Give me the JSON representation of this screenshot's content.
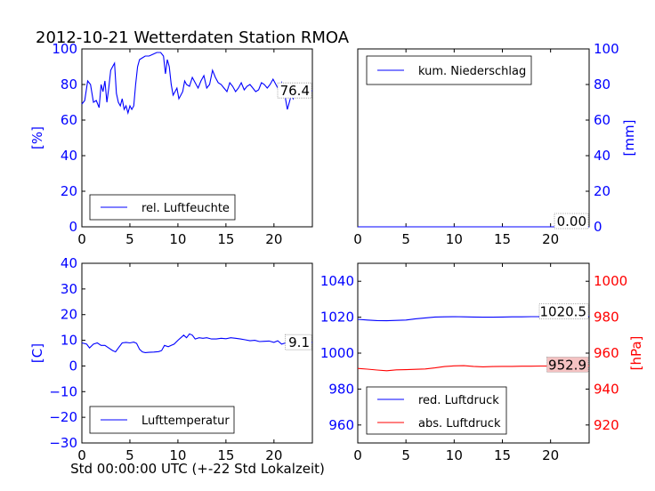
{
  "title": "2012-10-21 Wetterdaten Station RMOA",
  "xlabel": "Std 00:00:00 UTC (+-22 Std Lokalzeit)",
  "colors": {
    "blue": "#0000ff",
    "red": "#ff0000",
    "black": "#000000",
    "red_box": "#f4c2c2"
  },
  "chart_data": [
    {
      "id": "humidity",
      "type": "line",
      "ylabel": "[%]",
      "ylim": [
        0,
        100
      ],
      "yticks": [
        "0",
        "20",
        "40",
        "60",
        "80",
        "100"
      ],
      "xlim": [
        0,
        24
      ],
      "xticks": [
        "0",
        "5",
        "10",
        "15",
        "20"
      ],
      "legend": "rel. Luftfeuchte",
      "legend_position": "lower-left",
      "last_value_label": "76.4",
      "series": [
        {
          "name": "rel. Luftfeuchte",
          "color": "#0000ff",
          "x": [
            0,
            0.3,
            0.6,
            0.9,
            1.2,
            1.5,
            1.8,
            2.0,
            2.2,
            2.4,
            2.6,
            2.8,
            3.0,
            3.2,
            3.4,
            3.6,
            3.8,
            4.0,
            4.2,
            4.4,
            4.6,
            4.8,
            5.0,
            5.2,
            5.4,
            5.6,
            5.8,
            6.0,
            6.3,
            6.6,
            7.0,
            7.4,
            7.8,
            8.2,
            8.5,
            8.7,
            8.9,
            9.1,
            9.3,
            9.5,
            9.7,
            9.9,
            10.1,
            10.3,
            10.5,
            10.7,
            10.9,
            11.2,
            11.5,
            11.8,
            12.1,
            12.4,
            12.7,
            13.0,
            13.3,
            13.6,
            13.9,
            14.2,
            14.5,
            14.8,
            15.1,
            15.4,
            15.7,
            16.0,
            16.3,
            16.6,
            16.9,
            17.2,
            17.5,
            17.8,
            18.1,
            18.4,
            18.7,
            19.0,
            19.3,
            19.6,
            19.9,
            20.2,
            20.5,
            20.8,
            21.0,
            21.2,
            21.4,
            21.6,
            21.8,
            22.0,
            22.2,
            22.4,
            22.6,
            22.8,
            23.0,
            23.3,
            23.6,
            24.0
          ],
          "y": [
            69,
            71,
            82,
            80,
            70,
            71,
            67,
            80,
            76,
            82,
            70,
            78,
            88,
            90,
            92,
            75,
            70,
            68,
            72,
            66,
            68,
            64,
            68,
            66,
            68,
            80,
            90,
            94,
            95,
            96,
            96,
            97,
            98,
            98,
            96,
            86,
            94,
            90,
            80,
            74,
            76,
            78,
            72,
            74,
            76,
            82,
            80,
            79,
            84,
            81,
            78,
            82,
            85,
            78,
            80,
            88,
            84,
            81,
            80,
            78,
            76,
            81,
            79,
            76,
            78,
            81,
            77,
            79,
            80,
            78,
            76,
            77,
            81,
            80,
            78,
            80,
            83,
            80,
            77,
            81,
            75,
            72,
            66,
            70,
            74,
            72,
            78,
            80,
            76,
            78,
            80,
            74,
            77,
            76.4
          ]
        }
      ]
    },
    {
      "id": "precipitation",
      "type": "line",
      "ylabel": "[mm]",
      "ylim": [
        0,
        100
      ],
      "yticks": [
        "0",
        "20",
        "40",
        "60",
        "80",
        "100"
      ],
      "xlim": [
        0,
        24
      ],
      "xticks": [
        "0",
        "5",
        "10",
        "15",
        "20"
      ],
      "legend": "kum. Niederschlag",
      "legend_position": "upper-left",
      "last_value_label": "0.00",
      "series": [
        {
          "name": "kum. Niederschlag",
          "color": "#0000ff",
          "x": [
            0,
            24
          ],
          "y": [
            0,
            0
          ]
        }
      ]
    },
    {
      "id": "temperature",
      "type": "line",
      "ylabel": "[C]",
      "ylim": [
        -30,
        40
      ],
      "yticks": [
        "−30",
        "−20",
        "−10",
        "0",
        "10",
        "20",
        "30",
        "40"
      ],
      "xlim": [
        0,
        24
      ],
      "xticks": [
        "0",
        "5",
        "10",
        "15",
        "20"
      ],
      "legend": "Lufttemperatur",
      "legend_position": "lower-left",
      "last_value_label": "9.1",
      "series": [
        {
          "name": "Lufttemperatur",
          "color": "#0000ff",
          "x": [
            0,
            0.5,
            0.8,
            1.2,
            1.6,
            2.0,
            2.4,
            2.8,
            3.2,
            3.5,
            3.8,
            4.2,
            4.6,
            5.0,
            5.4,
            5.7,
            6.0,
            6.3,
            6.6,
            7.0,
            7.5,
            8.0,
            8.3,
            8.6,
            9.0,
            9.3,
            9.6,
            10.0,
            10.3,
            10.6,
            10.9,
            11.2,
            11.5,
            11.8,
            12.2,
            12.6,
            13.0,
            13.5,
            14.0,
            14.5,
            15.0,
            15.5,
            16.0,
            16.5,
            17.0,
            17.5,
            18.0,
            18.5,
            19.0,
            19.5,
            20.0,
            20.4,
            20.8,
            21.2,
            21.6,
            22.0,
            22.3,
            22.6,
            23.0,
            23.5,
            24.0
          ],
          "y": [
            9,
            8.5,
            7,
            8.5,
            9,
            8,
            8,
            7,
            6,
            5.5,
            7,
            9,
            9.2,
            9,
            9.3,
            8.8,
            6.5,
            5.5,
            5.2,
            5.3,
            5.4,
            5.6,
            6,
            8,
            7.5,
            8,
            8.5,
            10,
            11,
            12,
            11,
            12.5,
            12,
            10.5,
            11,
            10.8,
            11,
            10.5,
            10.5,
            10.8,
            10.6,
            11,
            10.8,
            10.5,
            10.2,
            9.8,
            10,
            9.5,
            9.6,
            9.7,
            9.2,
            9.8,
            8.5,
            9,
            9.8,
            10,
            9.5,
            9.8,
            9.2,
            9.5,
            9.1
          ]
        }
      ]
    },
    {
      "id": "pressure",
      "type": "line",
      "ylabel_left": "",
      "ylabel_right": "[hPa]",
      "ylim_left": [
        950,
        1050
      ],
      "ylim_right": [
        910,
        1010
      ],
      "yticks_left": [
        "960",
        "980",
        "1000",
        "1020",
        "1040"
      ],
      "yticks_right": [
        "920",
        "940",
        "960",
        "980",
        "1000"
      ],
      "xlim": [
        0,
        24
      ],
      "xticks": [
        "0",
        "5",
        "10",
        "15",
        "20"
      ],
      "legend": [
        "red. Luftdruck",
        "abs. Luftdruck"
      ],
      "legend_position": "lower-left",
      "last_value_labels": [
        "1020.5",
        "952.9"
      ],
      "series": [
        {
          "name": "red. Luftdruck",
          "color": "#0000ff",
          "axis": "left",
          "x": [
            0,
            1,
            2,
            3,
            4,
            5,
            6,
            7,
            8,
            9,
            10,
            11,
            12,
            13,
            14,
            15,
            16,
            17,
            18,
            19,
            20,
            21,
            22,
            23,
            24
          ],
          "y": [
            1018.8,
            1018.4,
            1018.1,
            1018,
            1018.2,
            1018.4,
            1019.1,
            1019.6,
            1020.1,
            1020.2,
            1020.3,
            1020.2,
            1020.1,
            1020,
            1020,
            1020.1,
            1020.2,
            1020.2,
            1020.3,
            1020.3,
            1020.4,
            1020.4,
            1020.5,
            1020.5,
            1020.5
          ]
        },
        {
          "name": "abs. Luftdruck",
          "color": "#ff0000",
          "axis": "right",
          "x": [
            0,
            1,
            2,
            3,
            4,
            5,
            6,
            7,
            8,
            9,
            10,
            11,
            12,
            13,
            14,
            15,
            16,
            17,
            18,
            19,
            20,
            21,
            22,
            23,
            24
          ],
          "y": [
            951.5,
            951.1,
            950.6,
            950.2,
            950.7,
            950.8,
            951,
            951.2,
            951.8,
            952.5,
            952.9,
            953,
            952.6,
            952.4,
            952.5,
            952.6,
            952.6,
            952.7,
            952.7,
            952.8,
            952.8,
            952.9,
            952.9,
            952.9,
            952.9
          ]
        }
      ]
    }
  ]
}
